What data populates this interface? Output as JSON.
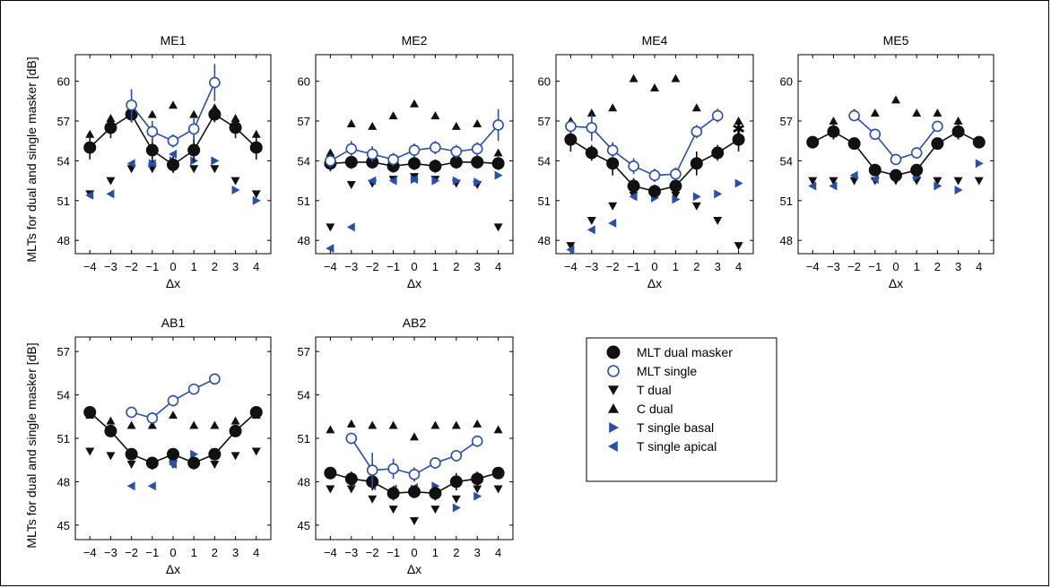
{
  "figure": {
    "ylabel_row1": "MLTs for dual and single masker [dB]",
    "ylabel_row2": "MLTs for dual and single masker [dB]"
  },
  "colors": {
    "black": "#111111",
    "blue": "#2a4fa8"
  },
  "legend": {
    "entries": [
      {
        "label": "MLT dual masker",
        "marker": "filled-circle"
      },
      {
        "label": "MLT single",
        "marker": "open-circle"
      },
      {
        "label": "T dual",
        "marker": "triangle-down"
      },
      {
        "label": "C dual",
        "marker": "triangle-up"
      },
      {
        "label": "T single basal",
        "marker": "triangle-right"
      },
      {
        "label": "T single apical",
        "marker": "triangle-left"
      }
    ]
  },
  "chart_data": [
    {
      "type": "line",
      "title": "ME1",
      "xlabel": "Δx",
      "ylabel": "MLTs for dual and single masker [dB]",
      "xlim": [
        -4.7,
        4.7
      ],
      "ylim": [
        47,
        62
      ],
      "xticks": [
        -4,
        -3,
        -2,
        -1,
        0,
        1,
        2,
        3,
        4
      ],
      "yticks": [
        48,
        51,
        54,
        57,
        60
      ],
      "series": [
        {
          "name": "MLT dual masker",
          "marker": "filled-circle",
          "line": true,
          "x": [
            -4,
            -3,
            -2,
            -1,
            0,
            1,
            2,
            3,
            4
          ],
          "y": [
            55.0,
            56.5,
            57.5,
            54.8,
            53.7,
            54.8,
            57.5,
            56.5,
            55.0
          ],
          "err": [
            0.9,
            0.8,
            0.6,
            0.9,
            0.6,
            0.9,
            0.6,
            0.8,
            0.9
          ]
        },
        {
          "name": "MLT single",
          "marker": "open-circle",
          "line": true,
          "x": [
            -2,
            -1,
            0,
            1,
            2
          ],
          "y": [
            58.2,
            56.2,
            55.5,
            56.4,
            59.9
          ],
          "err": [
            1.2,
            0.8,
            0.5,
            0.8,
            1.4
          ]
        },
        {
          "name": "T dual",
          "marker": "triangle-down",
          "x": [
            -4,
            -3,
            -2,
            -1,
            0,
            1,
            2,
            3,
            4
          ],
          "y": [
            51.5,
            52.5,
            53.4,
            53.4,
            53.4,
            53.4,
            53.4,
            52.5,
            51.5
          ]
        },
        {
          "name": "C dual",
          "marker": "triangle-up",
          "x": [
            -4,
            -3,
            -2,
            -1,
            0,
            1,
            2,
            3,
            4
          ],
          "y": [
            56.0,
            57.2,
            57.5,
            57.5,
            58.2,
            57.5,
            58.0,
            57.2,
            56.0
          ]
        },
        {
          "name": "T single basal",
          "marker": "triangle-right",
          "x": [
            -1,
            0,
            1,
            2,
            3,
            4
          ],
          "y": [
            53.8,
            54.0,
            54.0,
            54.0,
            51.8,
            51.0
          ]
        },
        {
          "name": "T single apical",
          "marker": "triangle-left",
          "x": [
            -4,
            -3,
            -2,
            -1,
            0
          ],
          "y": [
            51.4,
            51.5,
            53.8,
            53.8,
            54.5
          ]
        }
      ]
    },
    {
      "type": "line",
      "title": "ME2",
      "xlabel": "Δx",
      "ylabel": "",
      "xlim": [
        -4.7,
        4.7
      ],
      "ylim": [
        47,
        62
      ],
      "xticks": [
        -4,
        -3,
        -2,
        -1,
        0,
        1,
        2,
        3,
        4
      ],
      "yticks": [
        48,
        51,
        54,
        57,
        60
      ],
      "series": [
        {
          "name": "MLT dual masker",
          "marker": "filled-circle",
          "line": true,
          "x": [
            -4,
            -3,
            -2,
            -1,
            0,
            1,
            2,
            3,
            4
          ],
          "y": [
            53.8,
            53.9,
            53.9,
            53.6,
            53.8,
            53.6,
            53.9,
            53.9,
            53.8
          ],
          "err": [
            0.6,
            0.5,
            0.5,
            0.5,
            0.5,
            0.5,
            0.5,
            0.5,
            0.5
          ]
        },
        {
          "name": "MLT single",
          "marker": "open-circle",
          "line": true,
          "x": [
            -4,
            -3,
            -2,
            -1,
            0,
            1,
            2,
            3,
            4
          ],
          "y": [
            54.0,
            54.9,
            54.5,
            54.1,
            54.8,
            55.0,
            54.7,
            54.9,
            56.7
          ],
          "err": [
            0.5,
            0.6,
            0.6,
            0.5,
            0.5,
            0.5,
            0.5,
            0.5,
            1.2
          ]
        },
        {
          "name": "T dual",
          "marker": "triangle-down",
          "x": [
            -4,
            -3,
            -2,
            -1,
            0,
            1,
            2,
            3,
            4
          ],
          "y": [
            49.0,
            52.2,
            52.3,
            52.6,
            52.8,
            52.6,
            52.3,
            52.2,
            49.0
          ]
        },
        {
          "name": "C dual",
          "marker": "triangle-up",
          "x": [
            -4,
            -3,
            -2,
            -1,
            0,
            1,
            2,
            3,
            4
          ],
          "y": [
            54.6,
            56.8,
            56.6,
            57.4,
            58.3,
            57.4,
            56.6,
            56.8,
            54.6
          ]
        },
        {
          "name": "T single basal",
          "marker": "triangle-right",
          "x": [
            0,
            1,
            2,
            3,
            4
          ],
          "y": [
            52.6,
            52.5,
            52.5,
            52.4,
            52.9
          ]
        },
        {
          "name": "T single apical",
          "marker": "triangle-left",
          "x": [
            -4,
            -3,
            -2,
            -1,
            0
          ],
          "y": [
            47.4,
            49.0,
            52.5,
            52.5,
            52.6
          ]
        }
      ]
    },
    {
      "type": "line",
      "title": "ME4",
      "xlabel": "Δx",
      "ylabel": "",
      "xlim": [
        -4.7,
        4.7
      ],
      "ylim": [
        47,
        62
      ],
      "xticks": [
        -4,
        -3,
        -2,
        -1,
        0,
        1,
        2,
        3,
        4
      ],
      "yticks": [
        48,
        51,
        54,
        57,
        60
      ],
      "series": [
        {
          "name": "MLT dual masker",
          "marker": "filled-circle",
          "line": true,
          "x": [
            -4,
            -3,
            -2,
            -1,
            0,
            1,
            2,
            3,
            4
          ],
          "y": [
            55.6,
            54.6,
            53.8,
            52.1,
            51.7,
            52.1,
            53.8,
            54.6,
            55.6
          ],
          "err": [
            0.9,
            0.6,
            0.9,
            0.6,
            0.5,
            0.6,
            0.9,
            0.6,
            0.9
          ]
        },
        {
          "name": "MLT single",
          "marker": "open-circle",
          "line": true,
          "x": [
            -4,
            -3,
            -2,
            -1,
            0,
            1,
            2,
            3
          ],
          "y": [
            56.6,
            56.5,
            54.8,
            53.6,
            52.9,
            53.0,
            56.2,
            57.4
          ],
          "err": [
            0.5,
            1.0,
            0.6,
            0.6,
            0.5,
            0.5,
            0.5,
            0.5
          ]
        },
        {
          "name": "T dual",
          "marker": "triangle-down",
          "x": [
            -4,
            -3,
            -2,
            -1,
            0,
            1,
            2,
            3,
            4
          ],
          "y": [
            47.6,
            49.5,
            50.6,
            51.4,
            51.5,
            51.4,
            50.6,
            49.5,
            47.6
          ]
        },
        {
          "name": "C dual",
          "marker": "triangle-up",
          "x": [
            -4,
            -3,
            -2,
            -1,
            0,
            1,
            2,
            3,
            4
          ],
          "y": [
            57.0,
            57.6,
            58.0,
            60.2,
            59.5,
            60.2,
            58.0,
            57.6,
            57.0
          ]
        },
        {
          "name": "T single basal",
          "marker": "triangle-right",
          "x": [
            0,
            1,
            2,
            3,
            4
          ],
          "y": [
            51.2,
            51.1,
            51.3,
            51.5,
            52.3
          ]
        },
        {
          "name": "T single apical",
          "marker": "triangle-left",
          "x": [
            -4,
            -3,
            -2,
            -1,
            0
          ],
          "y": [
            47.3,
            48.8,
            49.3,
            51.3,
            51.6
          ]
        },
        {
          "name": "",
          "marker": "star",
          "x": [
            4
          ],
          "y": [
            56.4
          ]
        }
      ]
    },
    {
      "type": "line",
      "title": "ME5",
      "xlabel": "Δx",
      "ylabel": "",
      "xlim": [
        -4.7,
        4.7
      ],
      "ylim": [
        47,
        62
      ],
      "xticks": [
        -4,
        -3,
        -2,
        -1,
        0,
        1,
        2,
        3,
        4
      ],
      "yticks": [
        48,
        51,
        54,
        57,
        60
      ],
      "series": [
        {
          "name": "MLT dual masker",
          "marker": "filled-circle",
          "line": true,
          "x": [
            -4,
            -3,
            -2,
            -1,
            0,
            1,
            2,
            3,
            4
          ],
          "y": [
            55.4,
            56.2,
            55.3,
            53.3,
            52.9,
            53.3,
            55.3,
            56.2,
            55.4
          ],
          "err": [
            0.4,
            0.6,
            0.4,
            0.4,
            0.4,
            0.4,
            0.4,
            0.6,
            0.4
          ]
        },
        {
          "name": "MLT single",
          "marker": "open-circle",
          "line": true,
          "x": [
            -2,
            -1,
            0,
            1,
            2
          ],
          "y": [
            57.4,
            56.0,
            54.1,
            54.6,
            56.6
          ],
          "err": [
            0.4,
            0.4,
            0.4,
            0.4,
            0.4
          ]
        },
        {
          "name": "T dual",
          "marker": "triangle-down",
          "x": [
            -4,
            -3,
            -2,
            -1,
            0,
            1,
            2,
            3,
            4
          ],
          "y": [
            52.5,
            52.5,
            52.5,
            52.5,
            52.5,
            52.5,
            52.5,
            52.5,
            52.5
          ]
        },
        {
          "name": "C dual",
          "marker": "triangle-up",
          "x": [
            -4,
            -3,
            -2,
            -1,
            0,
            1,
            2,
            3,
            4
          ],
          "y": [
            55.4,
            57.0,
            57.6,
            57.6,
            58.6,
            57.6,
            57.6,
            57.0,
            55.4
          ]
        },
        {
          "name": "T single basal",
          "marker": "triangle-right",
          "x": [
            0,
            1,
            2,
            3,
            4
          ],
          "y": [
            52.9,
            52.8,
            52.1,
            51.8,
            53.8
          ]
        },
        {
          "name": "T single apical",
          "marker": "triangle-left",
          "x": [
            -4,
            -3,
            -2,
            -1,
            0
          ],
          "y": [
            52.1,
            52.1,
            52.9,
            52.6,
            52.9
          ]
        }
      ]
    },
    {
      "type": "line",
      "title": "AB1",
      "xlabel": "Δx",
      "ylabel": "MLTs for dual and single masker [dB]",
      "xlim": [
        -4.7,
        4.7
      ],
      "ylim": [
        44,
        58
      ],
      "xticks": [
        -4,
        -3,
        -2,
        -1,
        0,
        1,
        2,
        3,
        4
      ],
      "yticks": [
        45,
        48,
        51,
        54,
        57
      ],
      "series": [
        {
          "name": "MLT dual masker",
          "marker": "filled-circle",
          "line": true,
          "x": [
            -4,
            -3,
            -2,
            -1,
            0,
            1,
            2,
            3,
            4
          ],
          "y": [
            52.8,
            51.5,
            49.9,
            49.3,
            49.9,
            49.3,
            49.9,
            51.5,
            52.8
          ],
          "err": [
            0.3,
            0.4,
            0.4,
            0.3,
            0.3,
            0.3,
            0.4,
            0.4,
            0.3
          ]
        },
        {
          "name": "MLT single",
          "marker": "open-circle",
          "line": true,
          "x": [
            -2,
            -1,
            0,
            1,
            2
          ],
          "y": [
            52.8,
            52.4,
            53.6,
            54.4,
            55.1
          ],
          "err": [
            0.3,
            0.4,
            0.4,
            0.3,
            0.3
          ]
        },
        {
          "name": "T dual",
          "marker": "triangle-down",
          "x": [
            -4,
            -3,
            -2,
            -1,
            0,
            1,
            2,
            3,
            4
          ],
          "y": [
            50.1,
            49.8,
            49.2,
            49.1,
            49.2,
            49.1,
            49.2,
            49.8,
            50.1
          ]
        },
        {
          "name": "C dual",
          "marker": "triangle-up",
          "x": [
            -4,
            -3,
            -2,
            -1,
            0,
            1,
            2,
            3,
            4
          ],
          "y": [
            52.6,
            52.2,
            51.9,
            51.9,
            52.6,
            51.9,
            51.9,
            52.2,
            52.6
          ]
        },
        {
          "name": "T single basal",
          "marker": "triangle-right",
          "x": [
            0,
            1,
            2
          ],
          "y": [
            49.5,
            49.9,
            50.0
          ]
        },
        {
          "name": "T single apical",
          "marker": "triangle-left",
          "x": [
            -2,
            -1,
            0
          ],
          "y": [
            47.7,
            47.7,
            49.2
          ]
        }
      ]
    },
    {
      "type": "line",
      "title": "AB2",
      "xlabel": "Δx",
      "ylabel": "",
      "xlim": [
        -4.7,
        4.7
      ],
      "ylim": [
        44,
        58
      ],
      "xticks": [
        -4,
        -3,
        -2,
        -1,
        0,
        1,
        2,
        3,
        4
      ],
      "yticks": [
        45,
        48,
        51,
        54,
        57
      ],
      "series": [
        {
          "name": "MLT dual masker",
          "marker": "filled-circle",
          "line": true,
          "x": [
            -4,
            -3,
            -2,
            -1,
            0,
            1,
            2,
            3,
            4
          ],
          "y": [
            48.6,
            48.2,
            48.0,
            47.2,
            47.3,
            47.2,
            48.0,
            48.2,
            48.6
          ],
          "err": [
            0.3,
            0.5,
            0.6,
            0.5,
            0.4,
            0.5,
            0.6,
            0.5,
            0.3
          ]
        },
        {
          "name": "MLT single",
          "marker": "open-circle",
          "line": true,
          "x": [
            -3,
            -2,
            -1,
            0,
            1,
            2,
            3
          ],
          "y": [
            51.0,
            48.8,
            48.9,
            48.5,
            49.3,
            49.8,
            50.8
          ],
          "err": [
            0.4,
            1.2,
            0.7,
            0.5,
            0.4,
            0.4,
            0.4
          ]
        },
        {
          "name": "T dual",
          "marker": "triangle-down",
          "x": [
            -4,
            -3,
            -2,
            -1,
            0,
            1,
            2,
            3,
            4
          ],
          "y": [
            47.5,
            47.5,
            46.8,
            46.1,
            45.3,
            46.1,
            46.8,
            47.5,
            47.5
          ]
        },
        {
          "name": "C dual",
          "marker": "triangle-up",
          "x": [
            -4,
            -3,
            -2,
            -1,
            0,
            1,
            2,
            3,
            4
          ],
          "y": [
            51.6,
            52.0,
            51.9,
            51.9,
            51.1,
            51.9,
            51.9,
            52.0,
            51.6
          ]
        },
        {
          "name": "T single basal",
          "marker": "triangle-right",
          "x": [
            0,
            1,
            2,
            3
          ],
          "y": [
            47.5,
            47.7,
            46.2,
            47.0
          ]
        },
        {
          "name": "T single apical",
          "marker": "triangle-left",
          "x": [
            -3,
            -2,
            -1,
            0
          ],
          "y": [
            47.9,
            47.7,
            47.5,
            47.6
          ]
        }
      ]
    }
  ]
}
